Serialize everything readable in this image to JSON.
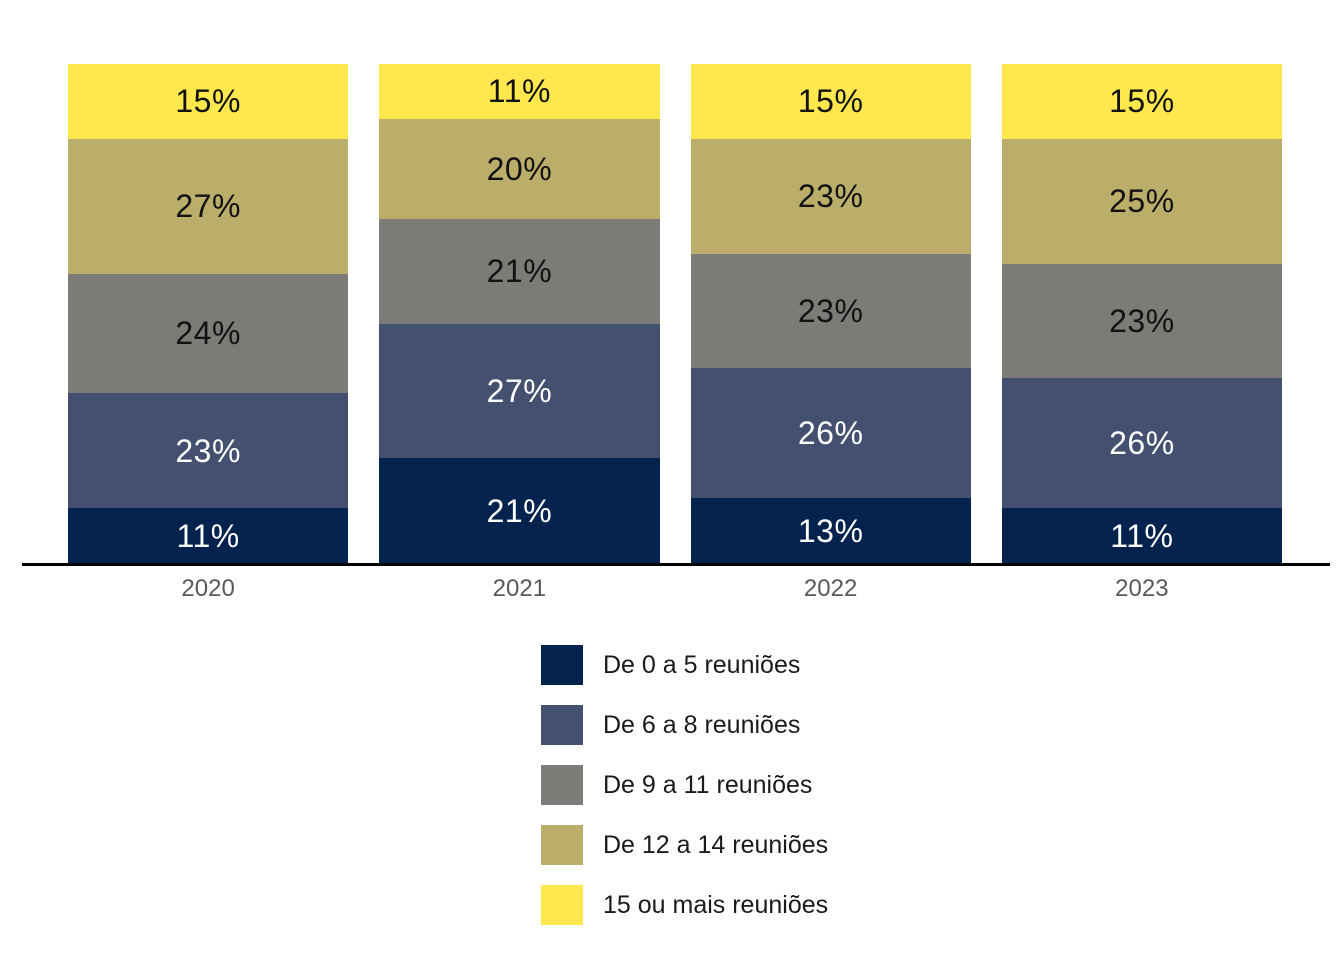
{
  "chart_data": {
    "type": "bar",
    "stacked": true,
    "orientation": "vertical",
    "title": "",
    "xlabel": "",
    "ylabel": "",
    "categories": [
      "2020",
      "2021",
      "2022",
      "2023"
    ],
    "series": [
      {
        "name": "De 0 a 5 reuniões",
        "color": "#03234E",
        "label_color": "#FFFFFF",
        "values": [
          11,
          21,
          13,
          11
        ]
      },
      {
        "name": "De 6 a 8 reuniões",
        "color": "#43506F",
        "label_color": "#FFFFFF",
        "values": [
          23,
          27,
          26,
          26
        ]
      },
      {
        "name": "De 9 a 11 reuniões",
        "color": "#7C7B78",
        "label_color": "#121212",
        "values": [
          24,
          21,
          23,
          23
        ]
      },
      {
        "name": "De 12 a 14 reuniões",
        "color": "#BBAE6B",
        "label_color": "#121212",
        "values": [
          27,
          20,
          23,
          25
        ]
      },
      {
        "name": "15 ou mais reuniões",
        "color": "#FFE74E",
        "label_color": "#121212",
        "values": [
          15,
          11,
          15,
          15
        ]
      }
    ],
    "value_suffix": "%",
    "ylim": [
      0,
      100
    ],
    "grid": false,
    "legend_position": "bottom",
    "axis_line_color": "#000000",
    "category_label_color": "#58595B"
  }
}
